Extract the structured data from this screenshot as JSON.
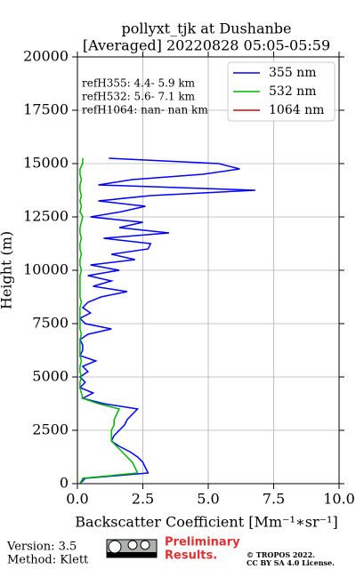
{
  "chart_data": {
    "type": "line",
    "title": "pollyxt_tjk at Dushanbe",
    "subtitle": "[Averaged] 20220828 05:05-05:59",
    "x_label": "Backscatter Coefficient [Mm⁻¹∗sr⁻¹]",
    "y_label": "Height (m)",
    "annotations": [
      "refH355:  4.4- 5.9 km",
      "refH532:  5.6- 7.1 km",
      "refH1064:  nan- nan km"
    ],
    "y": [
      0,
      250,
      500,
      750,
      1000,
      1250,
      1500,
      1750,
      2000,
      2250,
      2500,
      2750,
      3000,
      3250,
      3500,
      3750,
      4000,
      4250,
      4500,
      4750,
      5000,
      5250,
      5500,
      5750,
      6000,
      6250,
      6500,
      6750,
      7000,
      7250,
      7500,
      7750,
      8000,
      8250,
      8500,
      8750,
      9000,
      9250,
      9500,
      9750,
      10000,
      10250,
      10500,
      10750,
      11000,
      11250,
      11500,
      11750,
      12000,
      12250,
      12500,
      12750,
      13000,
      13250,
      13500,
      13750,
      14000,
      14250,
      14500,
      14750,
      15000,
      15250
    ],
    "series": [
      {
        "name": "355 nm",
        "color": "#0000ff",
        "values": [
          0.1,
          0.3,
          2.7,
          2.6,
          2.5,
          2.3,
          2.0,
          1.6,
          1.3,
          1.4,
          1.6,
          1.8,
          1.9,
          2.1,
          2.3,
          1.0,
          0.2,
          0.6,
          0.1,
          0.3,
          0.1,
          0.4,
          0.2,
          0.7,
          0.1,
          0.2,
          0.2,
          0.1,
          0.4,
          1.3,
          0.3,
          0.1,
          0.5,
          0.2,
          0.4,
          0.9,
          1.9,
          0.6,
          1.3,
          0.4,
          1.6,
          0.5,
          2.2,
          1.3,
          2.7,
          2.8,
          1.0,
          3.5,
          1.6,
          2.5,
          0.5,
          1.7,
          2.6,
          0.8,
          2.8,
          6.8,
          0.8,
          2.1,
          4.8,
          6.2,
          5.4,
          1.2
        ]
      },
      {
        "name": "532 nm",
        "color": "#00b400",
        "values": [
          0.1,
          0.2,
          2.3,
          2.2,
          2.1,
          1.9,
          1.7,
          1.5,
          1.3,
          1.3,
          1.3,
          1.4,
          1.4,
          1.5,
          1.6,
          0.8,
          0.2,
          0.15,
          0.1,
          0.1,
          0.15,
          0.1,
          0.1,
          0.15,
          0.1,
          0.1,
          0.1,
          0.1,
          0.15,
          0.1,
          0.1,
          0.1,
          0.1,
          0.1,
          0.15,
          0.1,
          0.1,
          0.1,
          0.1,
          0.1,
          0.15,
          0.1,
          0.1,
          0.15,
          0.1,
          0.1,
          0.15,
          0.1,
          0.1,
          0.15,
          0.2,
          0.1,
          0.15,
          0.1,
          0.15,
          0.1,
          0.1,
          0.15,
          0.1,
          0.1,
          0.2,
          0.2
        ]
      },
      {
        "name": "1064 nm",
        "color": "#e00000",
        "values": [
          null,
          null,
          null,
          null,
          null,
          null,
          null,
          null,
          null,
          null,
          null,
          null,
          null,
          null,
          null,
          null,
          null,
          null,
          null,
          null,
          null,
          null,
          null,
          null,
          null,
          null,
          null,
          null,
          null,
          null,
          null,
          null,
          null,
          null,
          null,
          null,
          null,
          null,
          null,
          null,
          null,
          null,
          null,
          null,
          null,
          null,
          null,
          null,
          null,
          null,
          null,
          null,
          null,
          null,
          null,
          null,
          null,
          null,
          null,
          null,
          null,
          null
        ]
      }
    ],
    "xlim": [
      0,
      10
    ],
    "xticks": [
      {
        "value": 0,
        "label": "0.0"
      },
      {
        "value": 2.5,
        "label": "2.5"
      },
      {
        "value": 5,
        "label": "5.0"
      },
      {
        "value": 7.5,
        "label": "7.5"
      },
      {
        "value": 10,
        "label": "10.0"
      }
    ],
    "ylim": [
      0,
      20000
    ],
    "yticks": [
      0,
      2500,
      5000,
      7500,
      10000,
      12500,
      15000,
      17500,
      20000
    ],
    "grid": true,
    "legend": "upper right"
  },
  "footer": {
    "version": "Version: 3.5",
    "method": "Method: Klett",
    "notice": [
      "Preliminary",
      "Results."
    ],
    "copyright": [
      "© TROPOS 2022.",
      "CC BY SA 4.0 License."
    ]
  }
}
